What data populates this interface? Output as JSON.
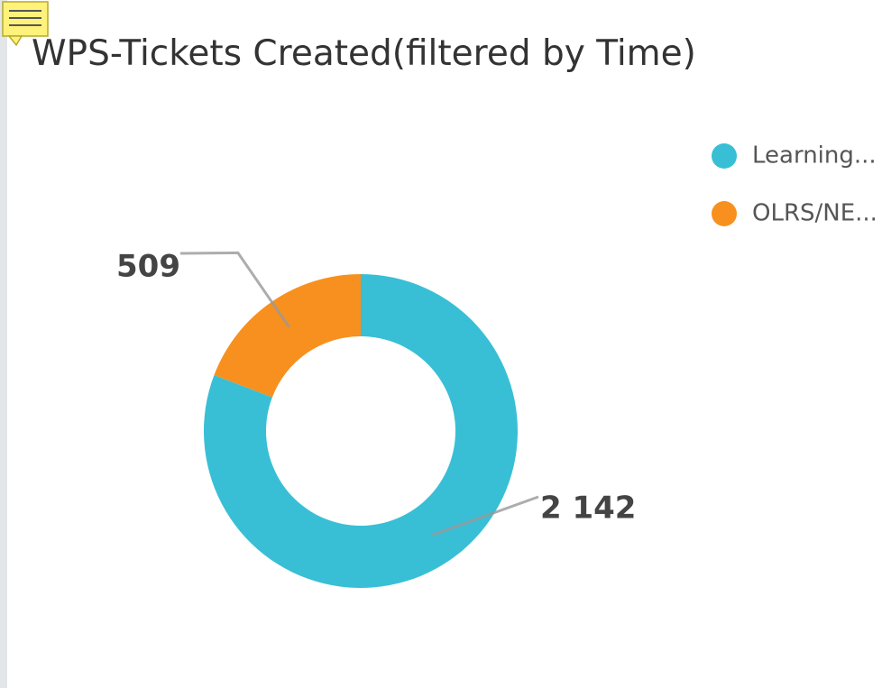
{
  "chart_data": {
    "type": "donut",
    "title": "WPS-Tickets Created(filtered by Time)",
    "categories": [
      "Learning...",
      "OLRS/NE..."
    ],
    "values": [
      2142,
      509
    ],
    "value_labels": [
      "2 142",
      "509"
    ],
    "colors": [
      "#38bfd6",
      "#f7901e"
    ],
    "legend": "right"
  }
}
